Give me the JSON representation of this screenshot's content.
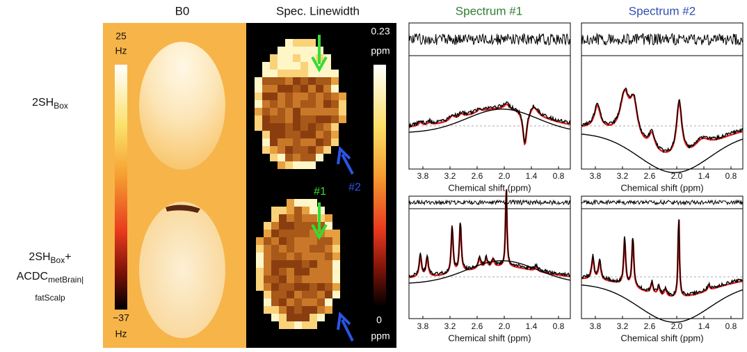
{
  "column_headers": [
    "B0",
    "Spec. Linewidth",
    "Spectrum #1",
    "Spectrum #2"
  ],
  "row_labels": [
    {
      "lines": [
        [
          {
            "text": "2SH"
          },
          {
            "text": "Box",
            "sub": true
          }
        ]
      ]
    },
    {
      "lines": [
        [
          {
            "text": "2SH"
          },
          {
            "text": "Box",
            "sub": true
          },
          {
            "text": "+"
          }
        ],
        [
          {
            "text": "ACDC"
          },
          {
            "text": "metBrain|",
            "sub": true
          }
        ],
        [
          {
            "text": "fatScalp",
            "sub": true
          }
        ]
      ]
    }
  ],
  "b0_colorbar": {
    "max": "25",
    "max_unit": "Hz",
    "min": "−37",
    "min_unit": "Hz"
  },
  "linewidth_colorbar": {
    "max": "0.23",
    "max_unit": "ppm",
    "min": "0",
    "min_unit": "ppm"
  },
  "annotations": [
    "#1",
    "#2"
  ],
  "spectrum_axis": {
    "label": "Chemical shift (ppm)",
    "ticks": [
      "3.8",
      "3.2",
      "2.6",
      "2.0",
      "1.4",
      "0.8"
    ]
  }
}
